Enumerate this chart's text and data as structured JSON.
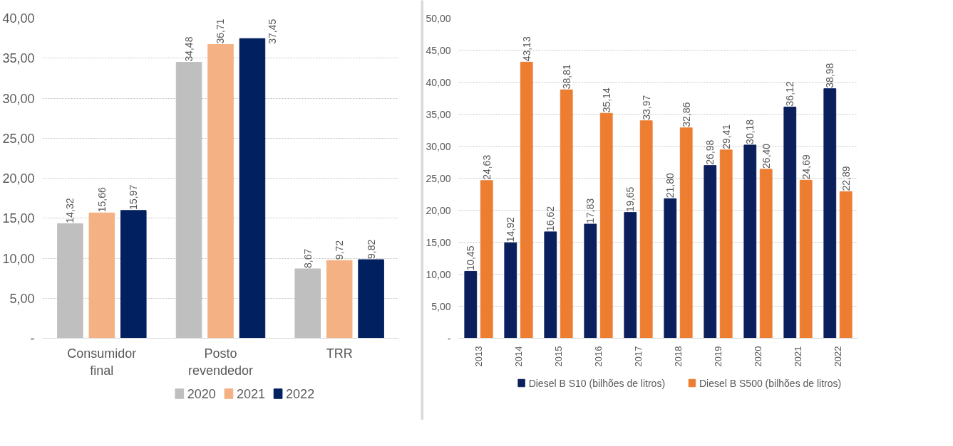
{
  "chart_data": [
    {
      "type": "bar",
      "categories": [
        "Consumidor final",
        "Posto revendedor",
        "TRR"
      ],
      "series": [
        {
          "name": "2020",
          "color": "#bfbfbf",
          "values": [
            14.32,
            34.48,
            8.67
          ],
          "value_labels": [
            "14,32",
            "34,48",
            "8,67"
          ]
        },
        {
          "name": "2021",
          "color": "#f4b183",
          "values": [
            15.66,
            36.71,
            9.72
          ],
          "value_labels": [
            "15,66",
            "36,71",
            "9,72"
          ]
        },
        {
          "name": "2022",
          "color": "#002060",
          "values": [
            15.97,
            37.45,
            9.82
          ],
          "value_labels": [
            "15,97",
            "37,45",
            "9,82"
          ]
        }
      ],
      "ylim": [
        0,
        40
      ],
      "yticks": [
        {
          "value": 0,
          "label": "-"
        },
        {
          "value": 5,
          "label": "5,00"
        },
        {
          "value": 10,
          "label": "10,00"
        },
        {
          "value": 15,
          "label": "15,00"
        },
        {
          "value": 20,
          "label": "20,00"
        },
        {
          "value": 25,
          "label": "25,00"
        },
        {
          "value": 30,
          "label": "30,00"
        },
        {
          "value": 35,
          "label": "35,00"
        },
        {
          "value": 40,
          "label": "40,00"
        }
      ],
      "grid": "y",
      "legend": "bottom"
    },
    {
      "type": "bar",
      "categories": [
        "2013",
        "2014",
        "2015",
        "2016",
        "2017",
        "2018",
        "2019",
        "2020",
        "2021",
        "2022"
      ],
      "series": [
        {
          "name": "Diesel B S10 (bilhões de litros)",
          "color": "#0b1f5c",
          "values": [
            10.45,
            14.92,
            16.62,
            17.83,
            19.65,
            21.8,
            26.98,
            30.18,
            36.12,
            38.98
          ],
          "value_labels": [
            "10,45",
            "14,92",
            "16,62",
            "17,83",
            "19,65",
            "21,80",
            "26,98",
            "30,18",
            "36,12",
            "38,98"
          ]
        },
        {
          "name": "Diesel B S500 (bilhões de litros)",
          "color": "#ed7d31",
          "values": [
            24.63,
            43.13,
            38.81,
            35.14,
            33.97,
            32.86,
            29.41,
            26.4,
            24.69,
            22.89
          ],
          "value_labels": [
            "24,63",
            "43,13",
            "38,81",
            "35,14",
            "33,97",
            "32,86",
            "29,41",
            "26,40",
            "24,69",
            "22,89"
          ]
        }
      ],
      "ylim": [
        0,
        50
      ],
      "yticks": [
        {
          "value": 0,
          "label": "-"
        },
        {
          "value": 5,
          "label": "5,00"
        },
        {
          "value": 10,
          "label": "10,00"
        },
        {
          "value": 15,
          "label": "15,00"
        },
        {
          "value": 20,
          "label": "20,00"
        },
        {
          "value": 25,
          "label": "25,00"
        },
        {
          "value": 30,
          "label": "30,00"
        },
        {
          "value": 35,
          "label": "35,00"
        },
        {
          "value": 40,
          "label": "40,00"
        },
        {
          "value": 45,
          "label": "45,00"
        },
        {
          "value": 50,
          "label": "50,00"
        }
      ],
      "grid": "y",
      "legend": "bottom"
    }
  ]
}
